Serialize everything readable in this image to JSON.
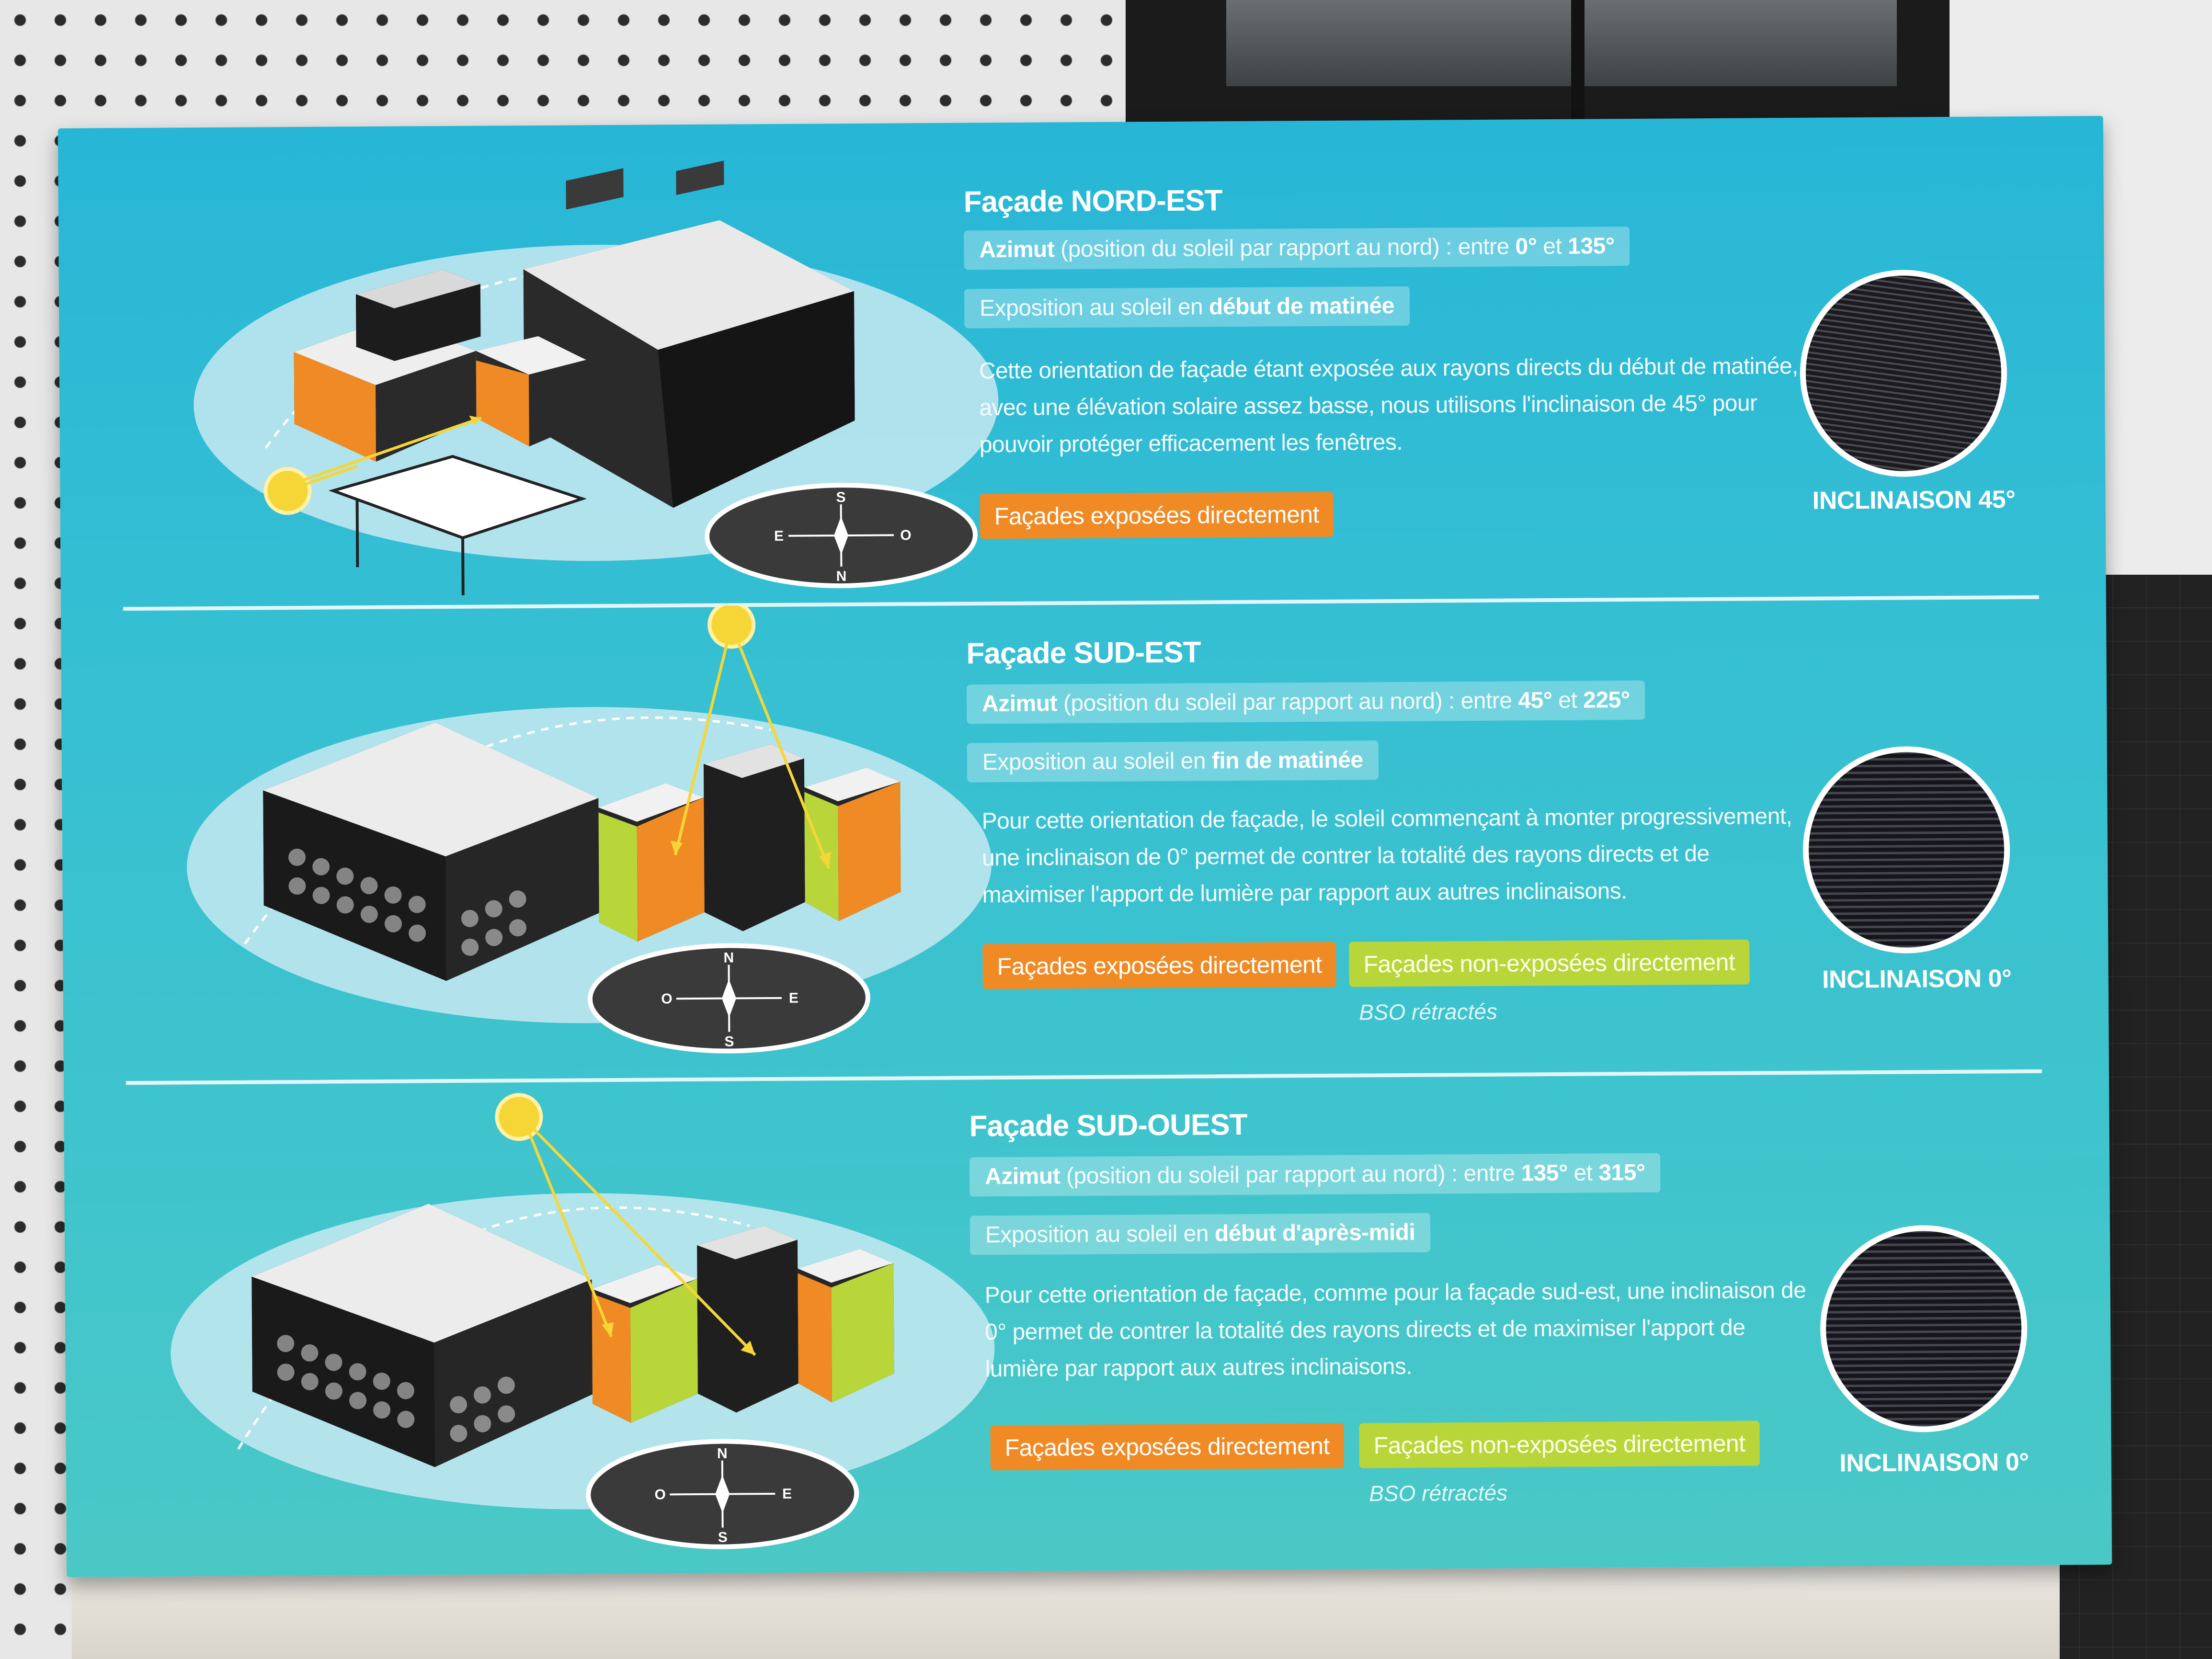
{
  "sections": [
    {
      "title": "Façade NORD-EST",
      "azimut": {
        "label": "Azimut",
        "text": " (position du soleil par rapport au nord) : entre ",
        "from": "0°",
        "and": " et ",
        "to": "135°"
      },
      "exposition": {
        "text": "Exposition au soleil en ",
        "bold": "début de matinée"
      },
      "body": "Cette orientation de façade étant exposée aux rayons directs du début de matinée, avec une élévation solaire assez basse, nous utilisons l'inclinaison de 45° pour pouvoir protéger efficacement les fenêtres.",
      "tags": [
        "Façades exposées directement"
      ],
      "note": "",
      "inclinaison": "INCLINAISON 45°",
      "compass": {
        "top": "S",
        "bottom": "N",
        "left": "E",
        "right": "O"
      }
    },
    {
      "title": "Façade SUD-EST",
      "azimut": {
        "label": "Azimut",
        "text": " (position du soleil par rapport au nord) : entre ",
        "from": "45°",
        "and": " et ",
        "to": "225°"
      },
      "exposition": {
        "text": "Exposition au soleil en ",
        "bold": "fin de matinée"
      },
      "body": "Pour cette orientation de façade, le soleil commençant à monter progressivement, une inclinaison de 0° permet de contrer la totalité des rayons directs et de maximiser l'apport de lumière par rapport aux autres inclinaisons.",
      "tags": [
        "Façades exposées directement",
        "Façades non-exposées directement"
      ],
      "note": "BSO rétractés",
      "inclinaison": "INCLINAISON 0°",
      "compass": {
        "top": "N",
        "bottom": "S",
        "left": "O",
        "right": "E"
      }
    },
    {
      "title": "Façade SUD-OUEST",
      "azimut": {
        "label": "Azimut",
        "text": " (position du soleil par rapport au nord) : entre ",
        "from": "135°",
        "and": " et ",
        "to": "315°"
      },
      "exposition": {
        "text": "Exposition au soleil en ",
        "bold": "début d'après-midi"
      },
      "body": "Pour cette orientation de façade, comme pour la façade sud-est, une inclinaison de 0° permet de contrer la totalité des rayons directs et de maximiser l'apport de lumière par rapport aux autres inclinaisons.",
      "tags": [
        "Façades exposées directement",
        "Façades non-exposées directement"
      ],
      "note": "BSO rétractés",
      "inclinaison": "INCLINAISON 0°",
      "compass": {
        "top": "N",
        "bottom": "S",
        "left": "O",
        "right": "E"
      }
    }
  ],
  "colors": {
    "panel": "#35bfd3",
    "exposed": "#f08a24",
    "non_exposed": "#b8d63a",
    "sun": "#f6d637",
    "building_dark": "#232323"
  }
}
